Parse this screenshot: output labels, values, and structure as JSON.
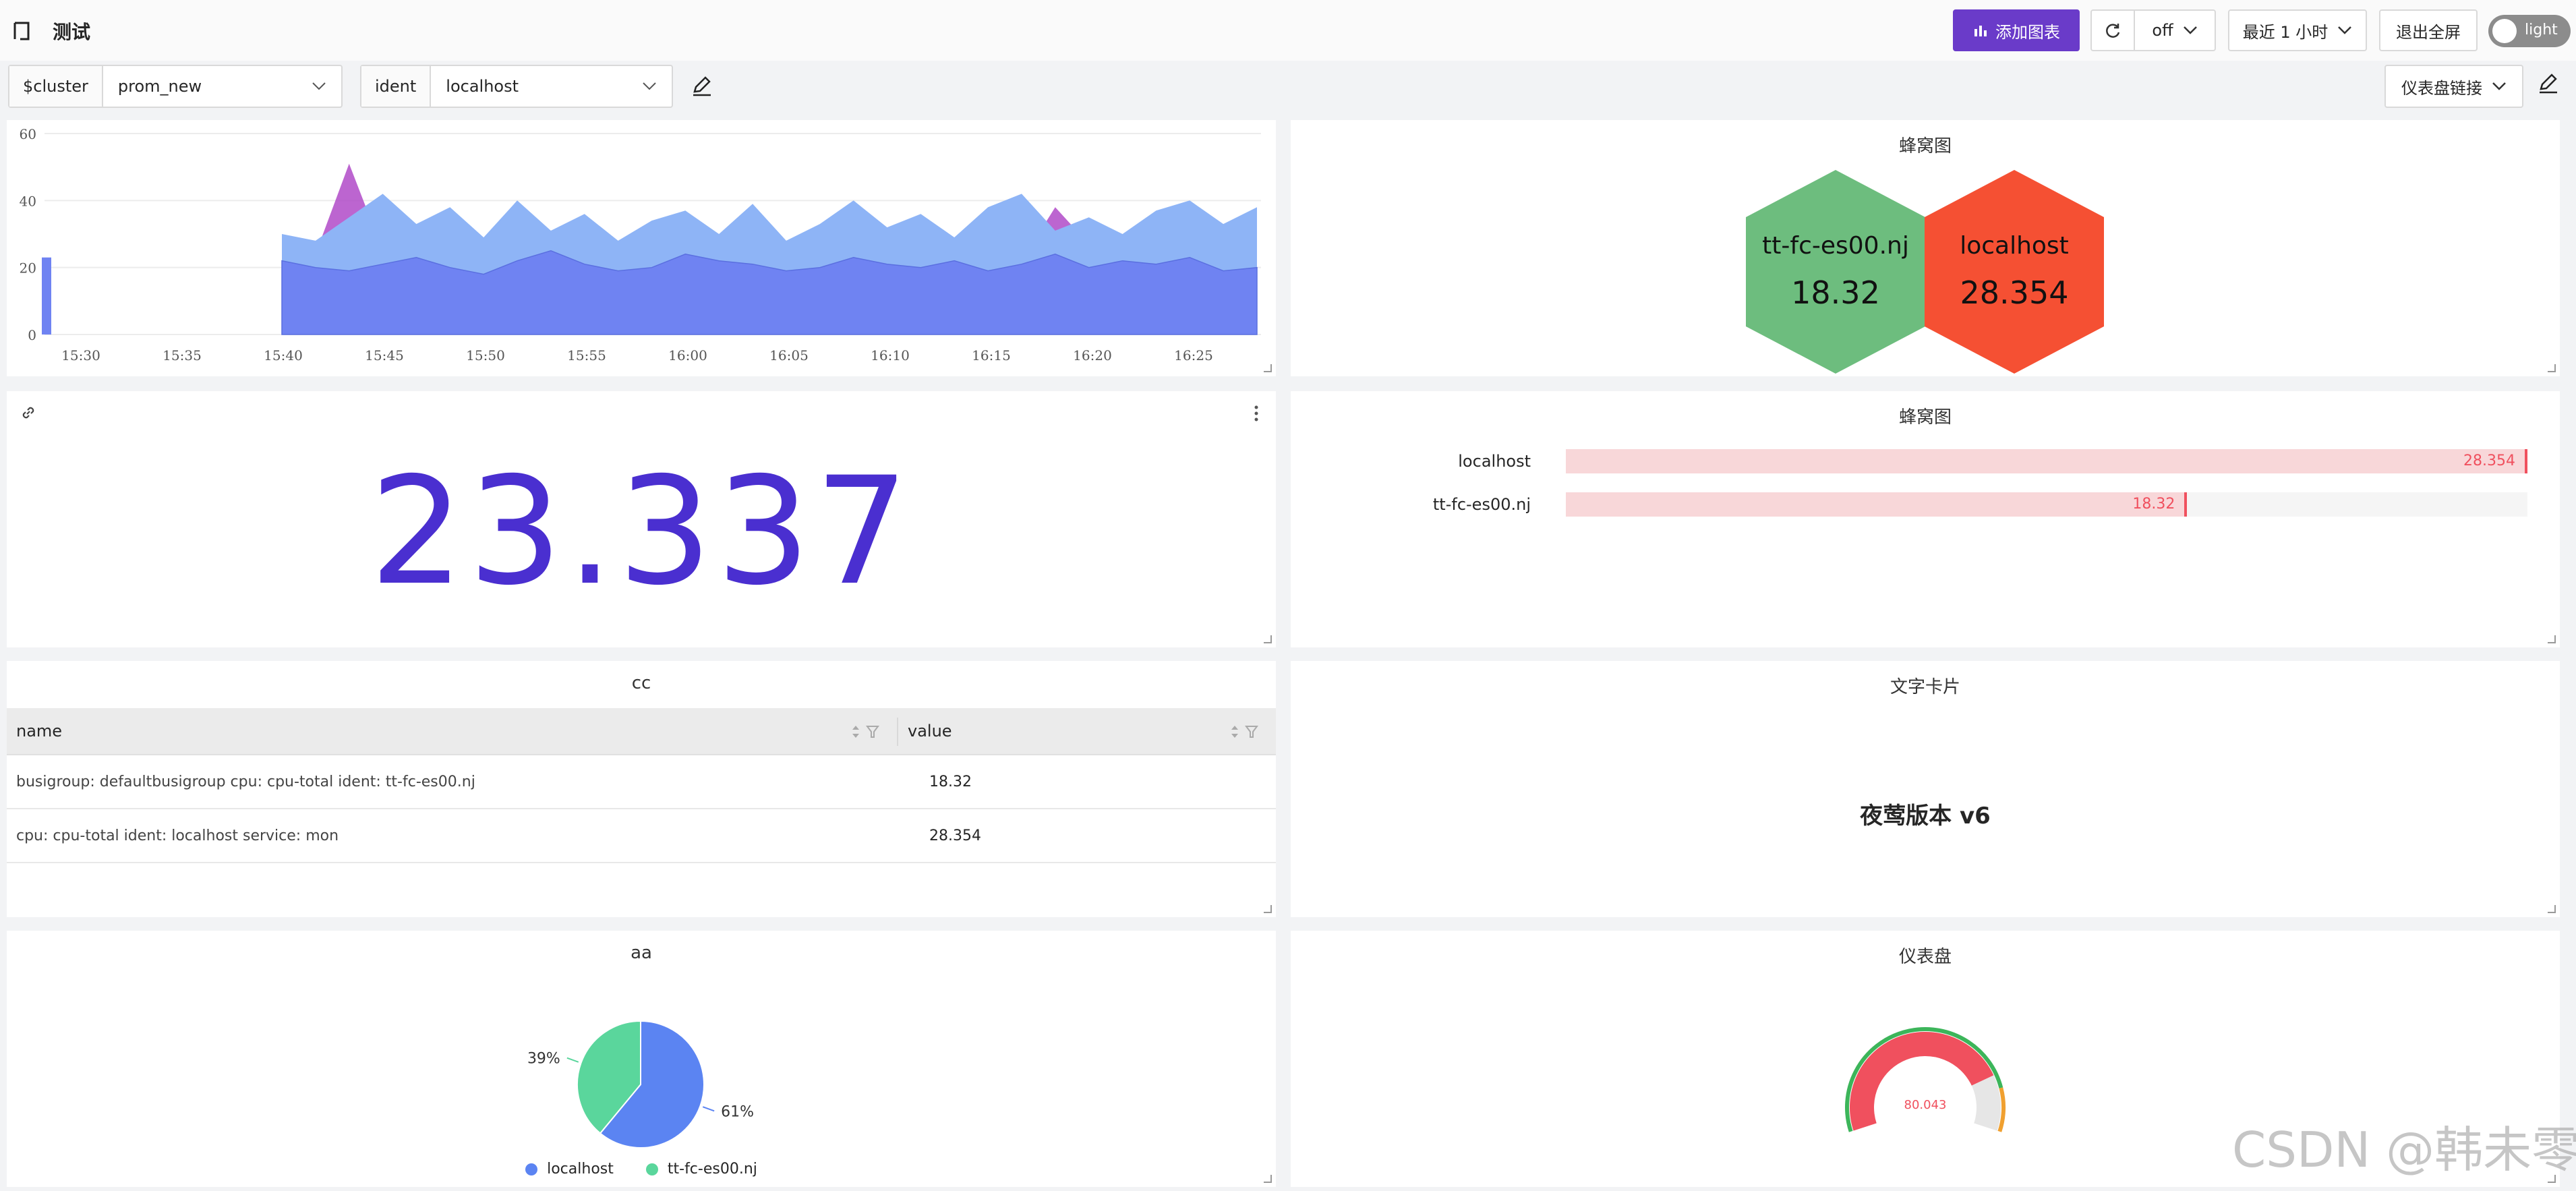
{
  "header": {
    "title": "测试",
    "add_chart": "添加图表",
    "refresh_interval": "off",
    "time_range": "最近 1 小时",
    "exit_fullscreen": "退出全屏",
    "theme_toggle": "light",
    "dashboard_link": "仪表盘链接"
  },
  "variables": [
    {
      "label": "$cluster",
      "value": "prom_new"
    },
    {
      "label": "ident",
      "value": "localhost"
    }
  ],
  "colors": {
    "primary": "#6a3bc9",
    "stat": "#4a2fd0",
    "hex_green": "#6dbd7e",
    "hex_red": "#f55033",
    "bar_fill": "#f8d7d9",
    "bar_accent": "#f0505e",
    "series_a": "#6f83f2",
    "series_b": "#8eb4f6",
    "series_c": "#b04ac8",
    "pie_blue": "#5b84f2",
    "pie_green": "#5ad69c"
  },
  "timeseries": {
    "chart_data": {
      "type": "area",
      "y_ticks": [
        "0",
        "20",
        "40",
        "60"
      ],
      "ylim": [
        0,
        60
      ],
      "x_ticks": [
        "15:30",
        "15:35",
        "15:40",
        "15:45",
        "15:50",
        "15:55",
        "16:00",
        "16:05",
        "16:10",
        "16:15",
        "16:20",
        "16:25"
      ],
      "series": [
        {
          "values": [
            22,
            20,
            19,
            21,
            23,
            20,
            18,
            22,
            25,
            21,
            19,
            20,
            24,
            22,
            21,
            19,
            20,
            23,
            21,
            20,
            22,
            19,
            21,
            24,
            20,
            22,
            21,
            23,
            19,
            20
          ]
        },
        {
          "values": [
            30,
            28,
            35,
            42,
            33,
            38,
            29,
            40,
            31,
            36,
            28,
            34,
            37,
            30,
            39,
            28,
            33,
            40,
            32,
            36,
            29,
            38,
            42,
            31,
            35,
            30,
            37,
            40,
            33,
            38
          ]
        },
        {
          "values": [
            22,
            24,
            51,
            25,
            30,
            22,
            26,
            28,
            20,
            24,
            22,
            26,
            21,
            25,
            23,
            27,
            24,
            22,
            26,
            20,
            23,
            25,
            22,
            38,
            27,
            24,
            26,
            28,
            23,
            25
          ]
        }
      ]
    }
  },
  "honeycomb": {
    "title": "蜂窝图",
    "items": [
      {
        "name": "tt-fc-es00.nj",
        "value": "18.32"
      },
      {
        "name": "localhost",
        "value": "28.354"
      }
    ]
  },
  "stat": {
    "value": "23.337"
  },
  "barGauge": {
    "title": "蜂窝图",
    "chart_data": {
      "type": "bar",
      "categories": [
        "localhost",
        "tt-fc-es00.nj"
      ],
      "values": [
        28.354,
        18.32
      ],
      "labels": [
        "28.354",
        "18.32"
      ],
      "max": 28.354
    }
  },
  "table": {
    "title": "cc",
    "columns": [
      "name",
      "value"
    ],
    "rows": [
      [
        "busigroup: defaultbusigroup cpu: cpu-total ident: tt-fc-es00.nj",
        "18.32"
      ],
      [
        "cpu: cpu-total ident: localhost service: mon",
        "28.354"
      ]
    ]
  },
  "textCard": {
    "title": "文字卡片",
    "content": "夜莺版本 v6"
  },
  "pie": {
    "title": "aa",
    "chart_data": {
      "type": "pie",
      "categories": [
        "localhost",
        "tt-fc-es00.nj"
      ],
      "values": [
        61,
        39
      ],
      "labels": [
        "61%",
        "39%"
      ]
    }
  },
  "gauge": {
    "title": "仪表盘",
    "value": "80.043",
    "fraction": 0.8
  },
  "watermark": "CSDN @韩未零"
}
